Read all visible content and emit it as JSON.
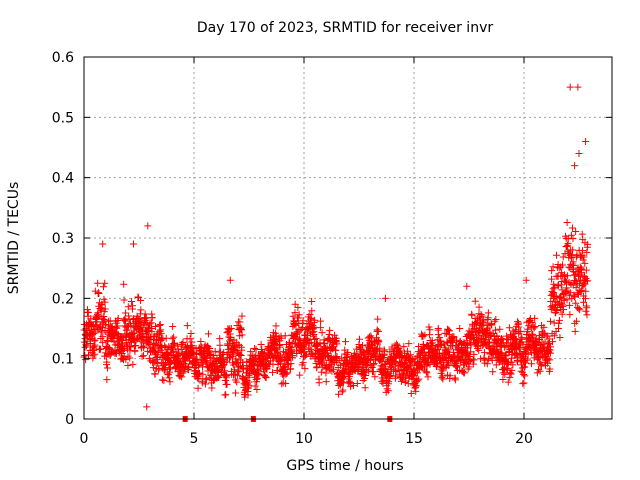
{
  "chart_data": {
    "type": "scatter",
    "title": "Day 170 of 2023, SRMTID for receiver invr",
    "xlabel": "GPS time / hours",
    "ylabel": "SRMTID / TECUs",
    "xlim": [
      0,
      24
    ],
    "ylim": [
      0,
      0.6
    ],
    "xticks": [
      0,
      5,
      10,
      15,
      20
    ],
    "yticks": [
      0,
      0.1,
      0.2,
      0.3,
      0.4,
      0.5,
      0.6
    ],
    "ytick_labels": [
      "0",
      "0.1",
      "0.2",
      "0.3",
      "0.4",
      "0.5",
      "0.6"
    ],
    "grid": true,
    "marker": "+",
    "color": "#ff0000",
    "segments": [
      {
        "x0": 0.0,
        "x1": 0.5,
        "base": 0.14,
        "spread": 0.05
      },
      {
        "x0": 0.5,
        "x1": 1.0,
        "base": 0.16,
        "spread": 0.07
      },
      {
        "x0": 1.0,
        "x1": 1.8,
        "base": 0.13,
        "spread": 0.05
      },
      {
        "x0": 1.8,
        "x1": 2.6,
        "base": 0.16,
        "spread": 0.07
      },
      {
        "x0": 2.6,
        "x1": 3.5,
        "base": 0.12,
        "spread": 0.05
      },
      {
        "x0": 3.5,
        "x1": 4.5,
        "base": 0.1,
        "spread": 0.04
      },
      {
        "x0": 4.5,
        "x1": 5.5,
        "base": 0.095,
        "spread": 0.035
      },
      {
        "x0": 5.5,
        "x1": 6.5,
        "base": 0.085,
        "spread": 0.035
      },
      {
        "x0": 6.5,
        "x1": 7.2,
        "base": 0.12,
        "spread": 0.06
      },
      {
        "x0": 7.2,
        "x1": 8.5,
        "base": 0.09,
        "spread": 0.035
      },
      {
        "x0": 8.5,
        "x1": 9.5,
        "base": 0.1,
        "spread": 0.04
      },
      {
        "x0": 9.5,
        "x1": 10.5,
        "base": 0.13,
        "spread": 0.05
      },
      {
        "x0": 10.5,
        "x1": 11.5,
        "base": 0.11,
        "spread": 0.04
      },
      {
        "x0": 11.5,
        "x1": 12.5,
        "base": 0.08,
        "spread": 0.035
      },
      {
        "x0": 12.5,
        "x1": 13.5,
        "base": 0.11,
        "spread": 0.04
      },
      {
        "x0": 13.5,
        "x1": 14.5,
        "base": 0.09,
        "spread": 0.035
      },
      {
        "x0": 14.5,
        "x1": 15.5,
        "base": 0.1,
        "spread": 0.04
      },
      {
        "x0": 15.5,
        "x1": 16.5,
        "base": 0.11,
        "spread": 0.04
      },
      {
        "x0": 16.5,
        "x1": 17.5,
        "base": 0.11,
        "spread": 0.04
      },
      {
        "x0": 17.5,
        "x1": 18.5,
        "base": 0.13,
        "spread": 0.05
      },
      {
        "x0": 18.5,
        "x1": 19.5,
        "base": 0.12,
        "spread": 0.05
      },
      {
        "x0": 19.5,
        "x1": 20.5,
        "base": 0.13,
        "spread": 0.05
      },
      {
        "x0": 20.5,
        "x1": 21.2,
        "base": 0.11,
        "spread": 0.05
      },
      {
        "x0": 21.2,
        "x1": 21.8,
        "base": 0.2,
        "spread": 0.08
      },
      {
        "x0": 21.8,
        "x1": 22.9,
        "base": 0.24,
        "spread": 0.1
      }
    ],
    "notable_points": [
      {
        "x": 2.9,
        "y": 0.32
      },
      {
        "x": 2.85,
        "y": 0.02
      },
      {
        "x": 22.1,
        "y": 0.55
      },
      {
        "x": 22.45,
        "y": 0.55
      },
      {
        "x": 22.8,
        "y": 0.46
      },
      {
        "x": 22.5,
        "y": 0.44
      },
      {
        "x": 22.3,
        "y": 0.42
      },
      {
        "x": 0.85,
        "y": 0.29
      },
      {
        "x": 2.25,
        "y": 0.29
      },
      {
        "x": 6.65,
        "y": 0.23
      },
      {
        "x": 13.7,
        "y": 0.2
      },
      {
        "x": 17.4,
        "y": 0.22
      },
      {
        "x": 20.1,
        "y": 0.23
      }
    ],
    "gaps_x": [
      4.6,
      7.7,
      13.9
    ]
  }
}
